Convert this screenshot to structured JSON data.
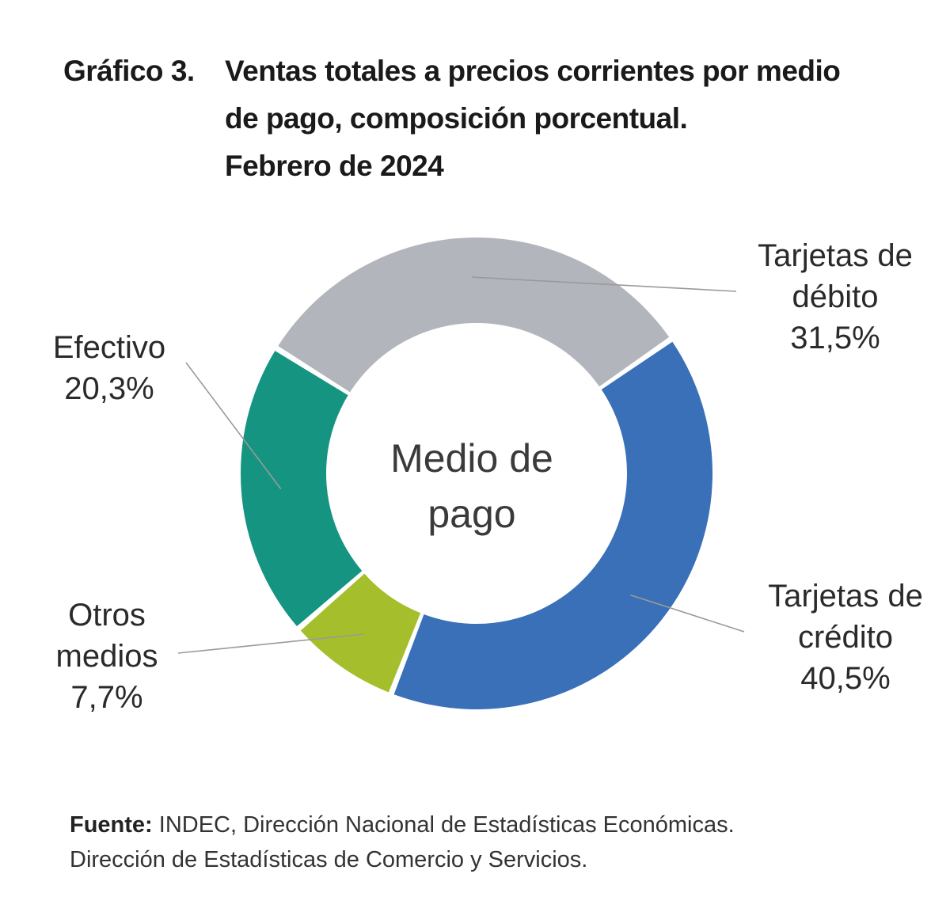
{
  "header": {
    "label": "Gráfico 3.",
    "title_lines": [
      "Ventas totales a precios corrientes por medio",
      "de pago, composición porcentual.",
      "Febrero de 2024"
    ]
  },
  "chart_data": {
    "type": "pie",
    "title": "Ventas totales a precios corrientes por medio de pago, composición porcentual. Febrero de 2024",
    "center_label_lines": [
      "Medio de",
      "pago"
    ],
    "slices": [
      {
        "label_lines": [
          "Tarjetas de",
          "débito"
        ],
        "value": 31.5,
        "value_label": "31,5%",
        "color": "#b2b5bb"
      },
      {
        "label_lines": [
          "Tarjetas de",
          "crédito"
        ],
        "value": 40.5,
        "value_label": "40,5%",
        "color": "#3a70b8"
      },
      {
        "label_lines": [
          "Otros",
          "medios"
        ],
        "value": 7.7,
        "value_label": "7,7%",
        "color": "#a4bf2b"
      },
      {
        "label_lines": [
          "Efectivo"
        ],
        "value": 20.3,
        "value_label": "20,3%",
        "color": "#159481"
      }
    ]
  },
  "source": {
    "label": "Fuente:",
    "line1": " INDEC, Dirección Nacional de Estadísticas Económicas.",
    "line2": "Dirección de Estadísticas de Comercio y Servicios."
  }
}
